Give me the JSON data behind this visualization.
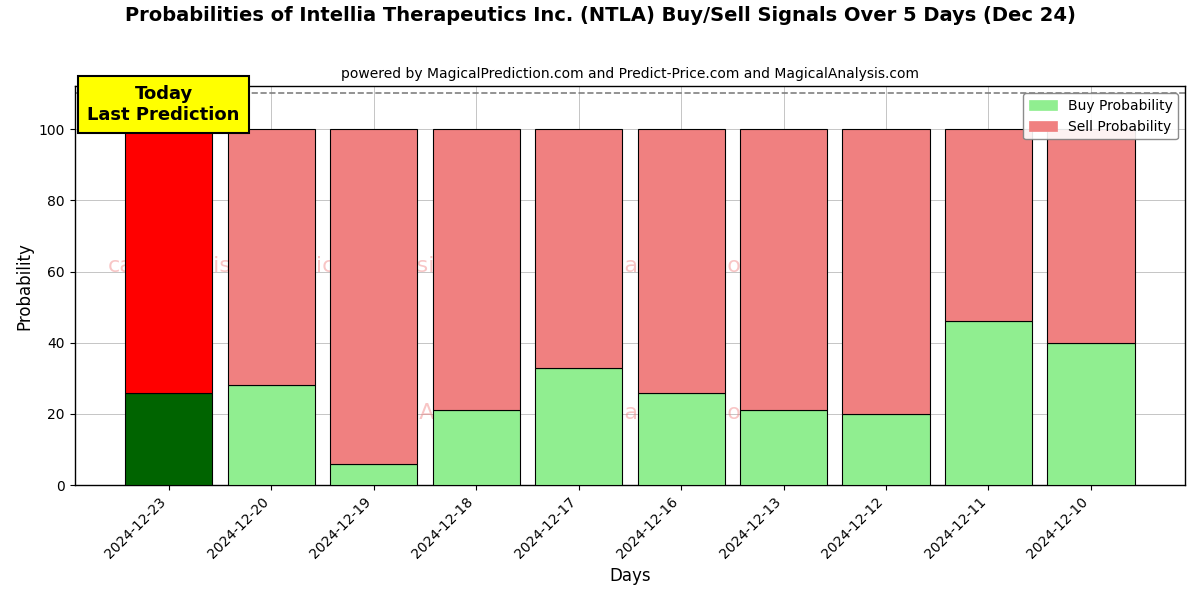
{
  "title": "Probabilities of Intellia Therapeutics Inc. (NTLA) Buy/Sell Signals Over 5 Days (Dec 24)",
  "subtitle": "powered by MagicalPrediction.com and Predict-Price.com and MagicalAnalysis.com",
  "xlabel": "Days",
  "ylabel": "Probability",
  "categories": [
    "2024-12-23",
    "2024-12-20",
    "2024-12-19",
    "2024-12-18",
    "2024-12-17",
    "2024-12-16",
    "2024-12-13",
    "2024-12-12",
    "2024-12-11",
    "2024-12-10"
  ],
  "buy_values": [
    26,
    28,
    6,
    21,
    33,
    26,
    21,
    20,
    46,
    40
  ],
  "sell_values": [
    74,
    72,
    94,
    79,
    67,
    74,
    79,
    80,
    54,
    60
  ],
  "today_buy_color": "#006400",
  "today_sell_color": "#FF0000",
  "buy_color": "#90EE90",
  "sell_color": "#F08080",
  "today_label_bg": "#FFFF00",
  "today_label_text": "Today\nLast Prediction",
  "legend_buy": "Buy Probability",
  "legend_sell": "Sell Probability",
  "ylim": [
    0,
    112
  ],
  "dashed_line_y": 110,
  "background_color": "#ffffff",
  "grid_color": "#bbbbbb",
  "title_fontsize": 14,
  "subtitle_fontsize": 10,
  "bar_width": 0.85
}
